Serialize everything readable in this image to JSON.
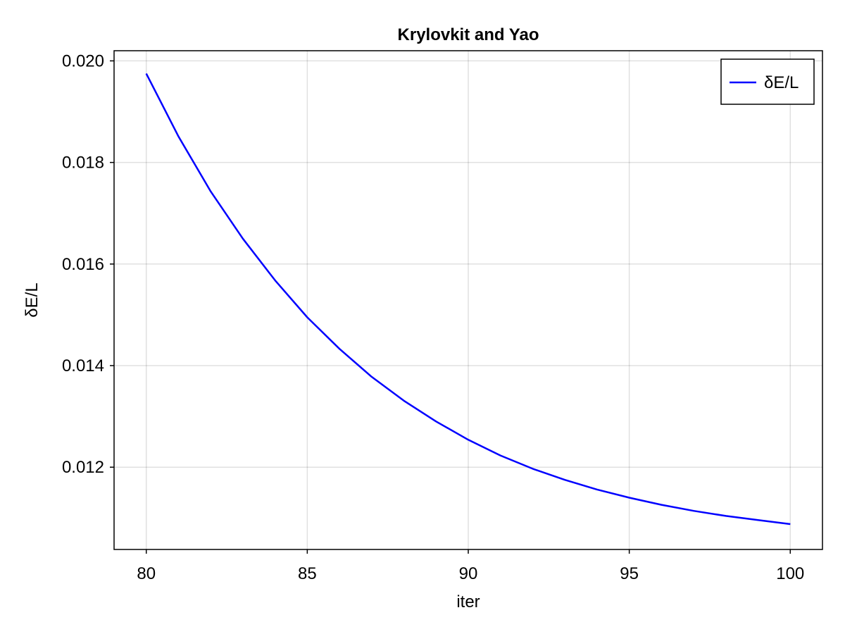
{
  "chart_data": {
    "type": "line",
    "title": "Krylovkit and Yao",
    "xlabel": "iter",
    "ylabel": "δE/L",
    "xlim": [
      79,
      101
    ],
    "ylim": [
      0.01038,
      0.0202
    ],
    "xticks": [
      80,
      85,
      90,
      95,
      100
    ],
    "xtick_labels": [
      "80",
      "85",
      "90",
      "95",
      "100"
    ],
    "yticks": [
      0.012,
      0.014,
      0.016,
      0.018,
      0.02
    ],
    "ytick_labels": [
      "0.012",
      "0.014",
      "0.016",
      "0.018",
      "0.020"
    ],
    "grid": true,
    "legend_position": "top-right",
    "series": [
      {
        "name": "δE/L",
        "color": "#0000ff",
        "x": [
          80,
          81,
          82,
          83,
          84,
          85,
          86,
          87,
          88,
          89,
          90,
          91,
          92,
          93,
          94,
          95,
          96,
          97,
          98,
          99,
          100
        ],
        "y": [
          0.01975,
          0.01851,
          0.01743,
          0.0165,
          0.01568,
          0.01495,
          0.01433,
          0.01378,
          0.01331,
          0.0129,
          0.01254,
          0.01223,
          0.01197,
          0.01175,
          0.01156,
          0.0114,
          0.01126,
          0.01114,
          0.01104,
          0.01096,
          0.01088
        ]
      }
    ]
  }
}
